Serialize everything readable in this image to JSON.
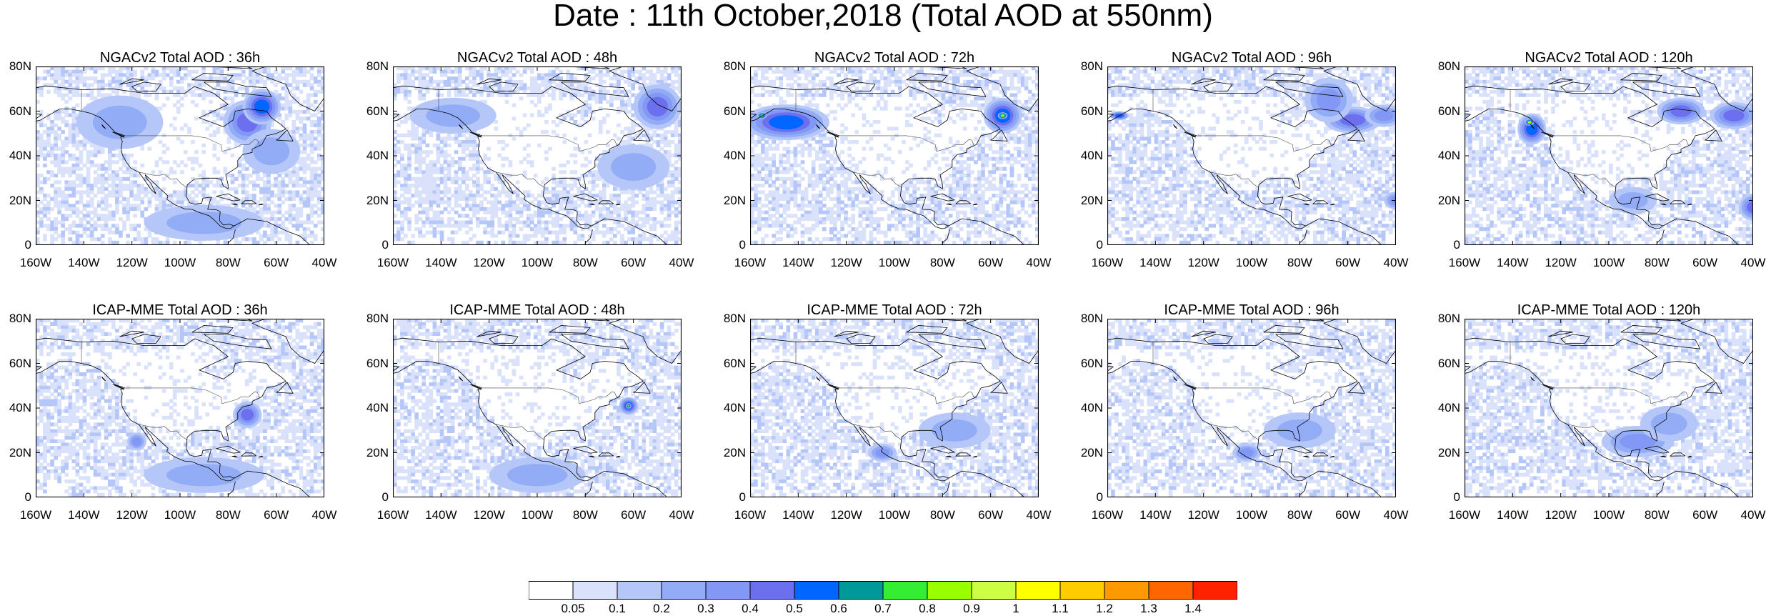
{
  "title": "Date : 11th October,2018 (Total AOD at 550nm)",
  "chart_data": [
    {
      "type": "heatmap",
      "title": "NGACv2 Total AOD : 36h",
      "xticks": [
        "160W",
        "140W",
        "120W",
        "100W",
        "80W",
        "60W",
        "40W"
      ],
      "yticks": [
        "80N",
        "60N",
        "40N",
        "20N",
        "0"
      ],
      "xlim": [
        -160,
        -40
      ],
      "ylim": [
        0,
        80
      ],
      "features": [
        {
          "lon": -72,
          "lat": 55,
          "rx": 10,
          "ry": 10,
          "level": 5
        },
        {
          "lon": -66,
          "lat": 62,
          "rx": 8,
          "ry": 8,
          "level": 6
        },
        {
          "lon": -125,
          "lat": 55,
          "rx": 18,
          "ry": 12,
          "level": 3
        },
        {
          "lon": -62,
          "lat": 42,
          "rx": 12,
          "ry": 10,
          "level": 3
        },
        {
          "lon": -90,
          "lat": 10,
          "rx": 25,
          "ry": 8,
          "level": 3
        }
      ]
    },
    {
      "type": "heatmap",
      "title": "NGACv2 Total AOD : 48h",
      "xticks": [
        "160W",
        "140W",
        "120W",
        "100W",
        "80W",
        "60W",
        "40W"
      ],
      "yticks": [
        "80N",
        "60N",
        "40N",
        "20N",
        "0"
      ],
      "xlim": [
        -160,
        -40
      ],
      "ylim": [
        0,
        80
      ],
      "features": [
        {
          "lon": -50,
          "lat": 62,
          "rx": 10,
          "ry": 10,
          "level": 5
        },
        {
          "lon": -135,
          "lat": 58,
          "rx": 18,
          "ry": 8,
          "level": 3
        },
        {
          "lon": -60,
          "lat": 35,
          "rx": 15,
          "ry": 10,
          "level": 3
        }
      ]
    },
    {
      "type": "heatmap",
      "title": "NGACv2 Total AOD : 72h",
      "xticks": [
        "160W",
        "140W",
        "120W",
        "100W",
        "80W",
        "60W",
        "40W"
      ],
      "yticks": [
        "80N",
        "60N",
        "40N",
        "20N",
        "0"
      ],
      "xlim": [
        -160,
        -40
      ],
      "ylim": [
        0,
        80
      ],
      "features": [
        {
          "lon": -145,
          "lat": 55,
          "rx": 18,
          "ry": 8,
          "level": 6
        },
        {
          "lon": -55,
          "lat": 58,
          "rx": 8,
          "ry": 8,
          "level": 6
        },
        {
          "lon": -55,
          "lat": 58,
          "rx": 2,
          "ry": 1.5,
          "level": 9
        },
        {
          "lon": -155,
          "lat": 58,
          "rx": 2,
          "ry": 1.5,
          "level": 8
        }
      ]
    },
    {
      "type": "heatmap",
      "title": "NGACv2 Total AOD : 96h",
      "xticks": [
        "160W",
        "140W",
        "120W",
        "100W",
        "80W",
        "60W",
        "40W"
      ],
      "yticks": [
        "80N",
        "60N",
        "40N",
        "20N",
        "0"
      ],
      "xlim": [
        -160,
        -40
      ],
      "ylim": [
        0,
        80
      ],
      "features": [
        {
          "lon": -58,
          "lat": 56,
          "rx": 12,
          "ry": 6,
          "level": 5
        },
        {
          "lon": -68,
          "lat": 65,
          "rx": 10,
          "ry": 10,
          "level": 4
        },
        {
          "lon": -45,
          "lat": 58,
          "rx": 8,
          "ry": 5,
          "level": 4
        },
        {
          "lon": -155,
          "lat": 58,
          "rx": 4,
          "ry": 2,
          "level": 6
        },
        {
          "lon": -40,
          "lat": 20,
          "rx": 5,
          "ry": 4,
          "level": 4
        }
      ]
    },
    {
      "type": "heatmap",
      "title": "NGACv2 Total AOD : 120h",
      "xticks": [
        "160W",
        "140W",
        "120W",
        "100W",
        "80W",
        "60W",
        "40W"
      ],
      "yticks": [
        "80N",
        "60N",
        "40N",
        "20N",
        "0"
      ],
      "xlim": [
        -160,
        -40
      ],
      "ylim": [
        0,
        80
      ],
      "features": [
        {
          "lon": -132,
          "lat": 52,
          "rx": 6,
          "ry": 7,
          "level": 6
        },
        {
          "lon": -133,
          "lat": 55,
          "rx": 2,
          "ry": 1.5,
          "level": 9
        },
        {
          "lon": -70,
          "lat": 60,
          "rx": 10,
          "ry": 6,
          "level": 5
        },
        {
          "lon": -48,
          "lat": 58,
          "rx": 10,
          "ry": 6,
          "level": 5
        },
        {
          "lon": -40,
          "lat": 17,
          "rx": 6,
          "ry": 6,
          "level": 5
        },
        {
          "lon": -90,
          "lat": 20,
          "rx": 10,
          "ry": 6,
          "level": 3
        }
      ]
    },
    {
      "type": "heatmap",
      "title": "ICAP-MME Total AOD : 36h",
      "xticks": [
        "160W",
        "140W",
        "120W",
        "100W",
        "80W",
        "60W",
        "40W"
      ],
      "yticks": [
        "80N",
        "60N",
        "40N",
        "20N",
        "0"
      ],
      "xlim": [
        -160,
        -40
      ],
      "ylim": [
        0,
        80
      ],
      "features": [
        {
          "lon": -72,
          "lat": 37,
          "rx": 6,
          "ry": 6,
          "level": 5
        },
        {
          "lon": -118,
          "lat": 25,
          "rx": 4,
          "ry": 4,
          "level": 4
        },
        {
          "lon": -90,
          "lat": 10,
          "rx": 25,
          "ry": 8,
          "level": 3
        }
      ]
    },
    {
      "type": "heatmap",
      "title": "ICAP-MME Total AOD : 48h",
      "xticks": [
        "160W",
        "140W",
        "120W",
        "100W",
        "80W",
        "60W",
        "40W"
      ],
      "yticks": [
        "80N",
        "60N",
        "40N",
        "20N",
        "0"
      ],
      "xlim": [
        -160,
        -40
      ],
      "ylim": [
        0,
        80
      ],
      "features": [
        {
          "lon": -62,
          "lat": 41,
          "rx": 4,
          "ry": 4,
          "level": 6
        },
        {
          "lon": -62,
          "lat": 41,
          "rx": 1.2,
          "ry": 1.2,
          "level": 8
        },
        {
          "lon": -100,
          "lat": 10,
          "rx": 20,
          "ry": 8,
          "level": 3
        }
      ]
    },
    {
      "type": "heatmap",
      "title": "ICAP-MME Total AOD : 72h",
      "xticks": [
        "160W",
        "140W",
        "120W",
        "100W",
        "80W",
        "60W",
        "40W"
      ],
      "yticks": [
        "80N",
        "60N",
        "40N",
        "20N",
        "0"
      ],
      "xlim": [
        -160,
        -40
      ],
      "ylim": [
        0,
        80
      ],
      "features": [
        {
          "lon": -105,
          "lat": 20,
          "rx": 6,
          "ry": 4,
          "level": 4
        },
        {
          "lon": -75,
          "lat": 30,
          "rx": 15,
          "ry": 8,
          "level": 3
        }
      ]
    },
    {
      "type": "heatmap",
      "title": "ICAP-MME Total AOD : 96h",
      "xticks": [
        "160W",
        "140W",
        "120W",
        "100W",
        "80W",
        "60W",
        "40W"
      ],
      "yticks": [
        "80N",
        "60N",
        "40N",
        "20N",
        "0"
      ],
      "xlim": [
        -160,
        -40
      ],
      "ylim": [
        0,
        80
      ],
      "features": [
        {
          "lon": -102,
          "lat": 20,
          "rx": 6,
          "ry": 4,
          "level": 4
        },
        {
          "lon": -80,
          "lat": 30,
          "rx": 15,
          "ry": 8,
          "level": 3
        }
      ]
    },
    {
      "type": "heatmap",
      "title": "ICAP-MME Total AOD : 120h",
      "xticks": [
        "160W",
        "140W",
        "120W",
        "100W",
        "80W",
        "60W",
        "40W"
      ],
      "yticks": [
        "80N",
        "60N",
        "40N",
        "20N",
        "0"
      ],
      "xlim": [
        -160,
        -40
      ],
      "ylim": [
        0,
        80
      ],
      "features": [
        {
          "lon": -88,
          "lat": 25,
          "rx": 15,
          "ry": 7,
          "level": 4
        },
        {
          "lon": -75,
          "lat": 33,
          "rx": 12,
          "ry": 8,
          "level": 3
        }
      ]
    }
  ],
  "colorbar": {
    "labels": [
      "0.05",
      "0.1",
      "0.2",
      "0.3",
      "0.4",
      "0.5",
      "0.6",
      "0.7",
      "0.8",
      "0.9",
      "1",
      "1.1",
      "1.2",
      "1.3",
      "1.4"
    ],
    "colors": [
      "#ffffff",
      "#d9e1fb",
      "#b5c6f8",
      "#93acf6",
      "#8397f5",
      "#6c70ee",
      "#0066ff",
      "#009999",
      "#33ee33",
      "#99ff00",
      "#ccff44",
      "#ffff00",
      "#ffcc00",
      "#ff9900",
      "#ff6600",
      "#ff2200"
    ]
  }
}
